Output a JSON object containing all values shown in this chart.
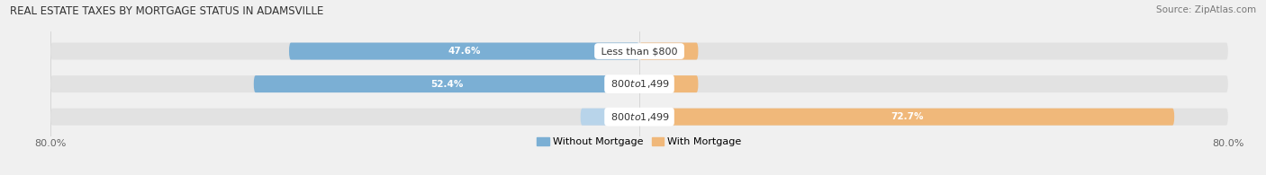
{
  "title": "REAL ESTATE TAXES BY MORTGAGE STATUS IN ADAMSVILLE",
  "source": "Source: ZipAtlas.com",
  "bars": [
    {
      "label": "Less than $800",
      "without_mortgage": 47.6,
      "with_mortgage": 0.0
    },
    {
      "label": "$800 to $1,499",
      "without_mortgage": 52.4,
      "with_mortgage": 0.0
    },
    {
      "label": "$800 to $1,499",
      "without_mortgage": 0.0,
      "with_mortgage": 72.7
    }
  ],
  "xlim": [
    -80,
    80
  ],
  "color_without": "#7BAFD4",
  "color_with": "#F0B87A",
  "color_without_light": "#B8D4EA",
  "bar_bg_color": "#E2E2E2",
  "bar_height": 0.52,
  "title_fontsize": 8.5,
  "source_fontsize": 7.5,
  "label_fontsize": 8,
  "pct_fontsize": 7.5,
  "legend_fontsize": 8,
  "axis_fontsize": 8,
  "bg_color": "#F0F0F0"
}
